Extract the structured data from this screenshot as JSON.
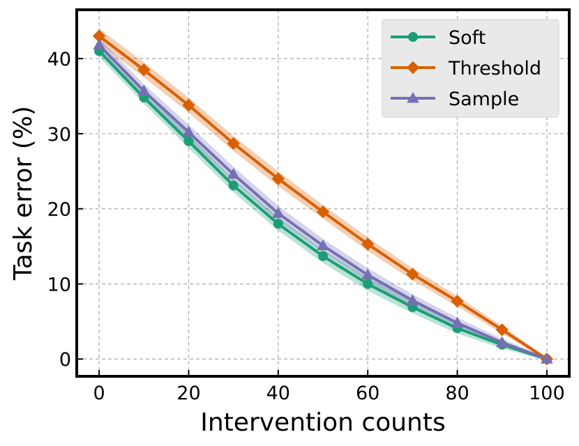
{
  "chart_data": {
    "type": "line",
    "xlabel": "Intervention counts",
    "ylabel": "Task error (%)",
    "xlim": [
      -5,
      105
    ],
    "ylim": [
      -2.3,
      46.5
    ],
    "xticks": [
      0,
      20,
      40,
      60,
      80,
      100
    ],
    "yticks": [
      0,
      10,
      20,
      30,
      40
    ],
    "grid": true,
    "legend_position": "top-right",
    "x": [
      0,
      10,
      20,
      30,
      40,
      50,
      60,
      70,
      80,
      90,
      100
    ],
    "series": [
      {
        "name": "Soft",
        "color": "#1b9e77",
        "marker": "circle",
        "values": [
          41.0,
          34.8,
          29.0,
          23.1,
          18.0,
          13.7,
          10.0,
          6.9,
          4.1,
          1.9,
          0.0
        ],
        "band": [
          0.8,
          0.8,
          0.9,
          0.9,
          0.9,
          0.9,
          0.9,
          0.8,
          0.7,
          0.5,
          0.2
        ]
      },
      {
        "name": "Threshold",
        "color": "#d95f02",
        "marker": "diamond",
        "values": [
          43.0,
          38.5,
          33.8,
          28.7,
          24.0,
          19.6,
          15.3,
          11.3,
          7.7,
          3.9,
          0.0
        ],
        "band": [
          1.0,
          1.0,
          1.0,
          1.0,
          1.0,
          0.9,
          0.9,
          0.8,
          0.7,
          0.5,
          0.2
        ]
      },
      {
        "name": "Sample",
        "color": "#7570b3",
        "marker": "triangle",
        "values": [
          41.8,
          35.7,
          30.2,
          24.6,
          19.4,
          15.1,
          11.2,
          7.8,
          4.8,
          2.2,
          0.0
        ],
        "band": [
          0.9,
          0.9,
          1.0,
          1.0,
          1.0,
          0.9,
          0.9,
          0.8,
          0.7,
          0.5,
          0.2
        ]
      }
    ]
  }
}
